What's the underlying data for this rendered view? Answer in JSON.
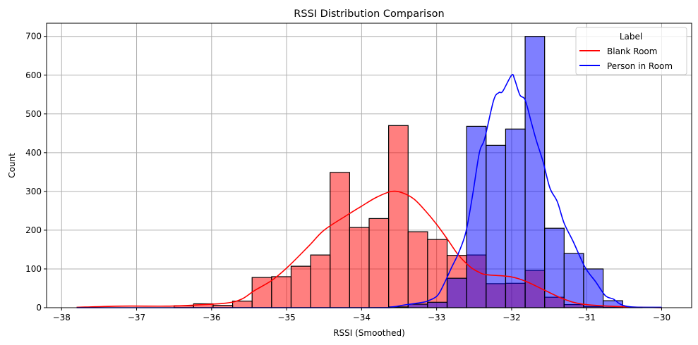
{
  "chart_data": {
    "type": "bar",
    "title": "RSSI Distribution Comparison",
    "xlabel": "RSSI (Smoothed)",
    "ylabel": "Count",
    "xlim": [
      -38.2,
      -29.6
    ],
    "ylim": [
      0,
      734
    ],
    "xticks": [
      -38,
      -37,
      -36,
      -35,
      -34,
      -33,
      -32,
      -31,
      -30
    ],
    "yticks": [
      0,
      100,
      200,
      300,
      400,
      500,
      600,
      700
    ],
    "grid": true,
    "legend": {
      "title": "Label",
      "placement": "top-right"
    },
    "bins": {
      "start": -37.8,
      "end": -30.0,
      "count": 30
    },
    "series": [
      {
        "name": "Blank Room",
        "color": "#ff0000",
        "fill": "#ff0000",
        "values": [
          0,
          0,
          0,
          0,
          0,
          5,
          10,
          6,
          17,
          78,
          80,
          107,
          136,
          349,
          207,
          230,
          470,
          196,
          176,
          135,
          136,
          62,
          63,
          96,
          27,
          8,
          3,
          1,
          0,
          0
        ],
        "kde": [
          [
            -37.8,
            1
          ],
          [
            -37.2,
            4
          ],
          [
            -36.6,
            4
          ],
          [
            -36.2,
            7
          ],
          [
            -35.8,
            12
          ],
          [
            -35.6,
            22
          ],
          [
            -35.43,
            44
          ],
          [
            -35.2,
            70
          ],
          [
            -34.99,
            104
          ],
          [
            -34.7,
            160
          ],
          [
            -34.5,
            200
          ],
          [
            -34.2,
            238
          ],
          [
            -34.0,
            262
          ],
          [
            -33.8,
            285
          ],
          [
            -33.6,
            300
          ],
          [
            -33.45,
            296
          ],
          [
            -33.3,
            280
          ],
          [
            -33.15,
            250
          ],
          [
            -33.0,
            215
          ],
          [
            -32.85,
            175
          ],
          [
            -32.71,
            136
          ],
          [
            -32.55,
            105
          ],
          [
            -32.43,
            91
          ],
          [
            -32.33,
            85
          ],
          [
            -32.02,
            80
          ],
          [
            -31.8,
            67
          ],
          [
            -31.55,
            44
          ],
          [
            -31.3,
            22
          ],
          [
            -31.05,
            9
          ],
          [
            -30.6,
            3
          ],
          [
            -30.0,
            0
          ]
        ]
      },
      {
        "name": "Person in Room",
        "color": "#0000ff",
        "fill": "#0000ff",
        "values": [
          0,
          0,
          0,
          0,
          0,
          0,
          0,
          0,
          0,
          0,
          0,
          0,
          0,
          0,
          0,
          0,
          2,
          9,
          14,
          76,
          468,
          419,
          461,
          700,
          205,
          140,
          100,
          18,
          1,
          0
        ],
        "kde": [
          [
            -37.8,
            0
          ],
          [
            -34.0,
            0
          ],
          [
            -33.6,
            2
          ],
          [
            -33.43,
            7
          ],
          [
            -33.18,
            14
          ],
          [
            -33.11,
            18
          ],
          [
            -32.99,
            31
          ],
          [
            -32.9,
            62
          ],
          [
            -32.8,
            104
          ],
          [
            -32.71,
            140
          ],
          [
            -32.61,
            195
          ],
          [
            -32.52,
            291
          ],
          [
            -32.43,
            400
          ],
          [
            -32.36,
            436
          ],
          [
            -32.24,
            535
          ],
          [
            -32.17,
            555
          ],
          [
            -32.12,
            558
          ],
          [
            -32.0,
            600
          ],
          [
            -31.96,
            589
          ],
          [
            -31.89,
            549
          ],
          [
            -31.82,
            536
          ],
          [
            -31.74,
            480
          ],
          [
            -31.67,
            431
          ],
          [
            -31.58,
            376
          ],
          [
            -31.49,
            309
          ],
          [
            -31.39,
            273
          ],
          [
            -31.3,
            218
          ],
          [
            -31.18,
            171
          ],
          [
            -31.02,
            104
          ],
          [
            -30.88,
            67
          ],
          [
            -30.75,
            31
          ],
          [
            -30.64,
            22
          ],
          [
            -30.55,
            9
          ],
          [
            -30.4,
            2
          ],
          [
            -30.0,
            1
          ]
        ]
      }
    ]
  }
}
